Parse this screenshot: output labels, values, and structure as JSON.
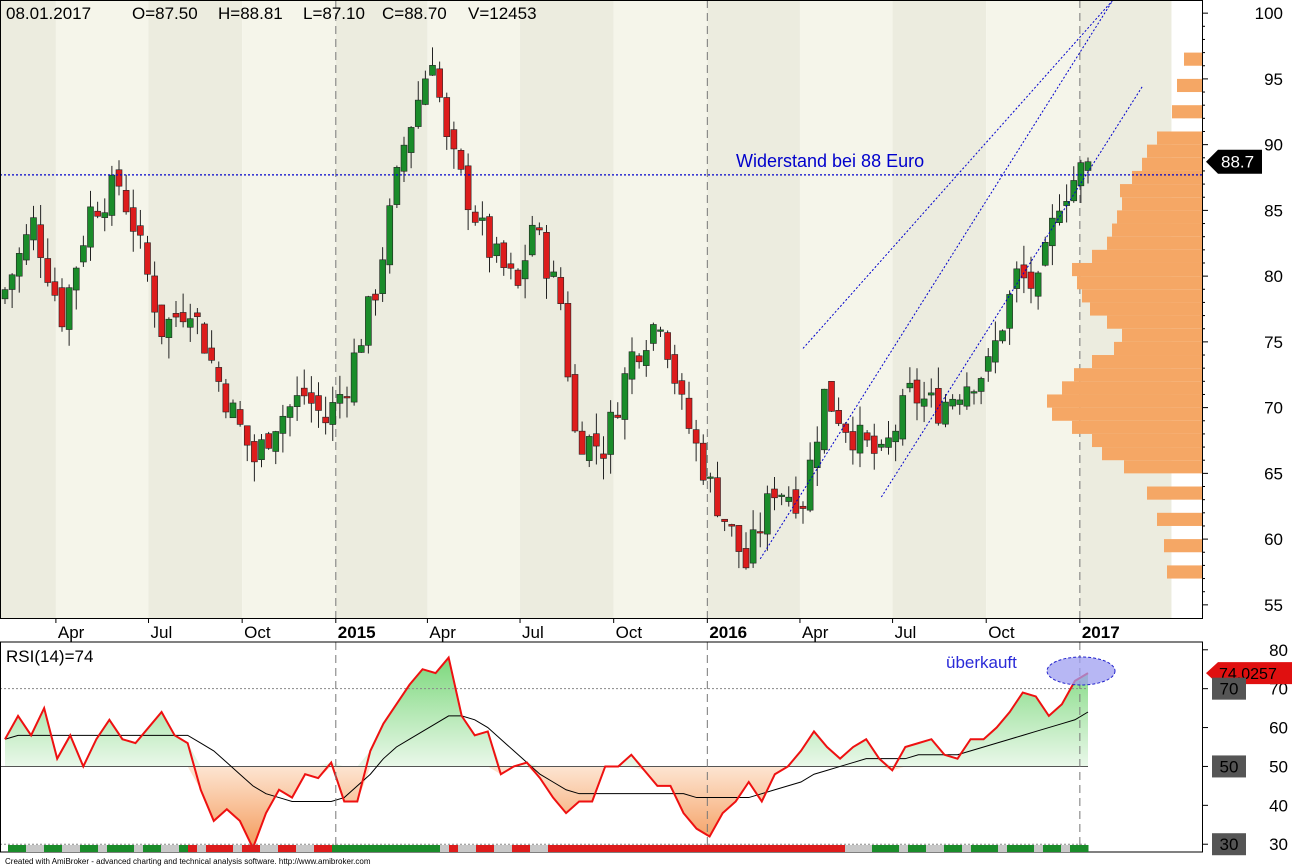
{
  "header": {
    "date": "08.01.2017",
    "open": "O=87.50",
    "high": "H=88.81",
    "low": "L=87.10",
    "close": "C=88.70",
    "volume": "V=12453"
  },
  "price_annotation": "Widerstand bei 88 Euro",
  "price_badge": "88.7",
  "rsi_label": "RSI(14)=74",
  "rsi_annotation": "überkauft",
  "rsi_badge": "74.0257",
  "rsi_levels": [
    "70",
    "50",
    "30"
  ],
  "footer": "Created with AmiBroker - advanced charting and technical analysis software. http://www.amibroker.com",
  "colors": {
    "up": "#1a8c2a",
    "down": "#dd1c1c",
    "trendline": "#0000cc",
    "rsi_line": "#ee1111",
    "volume_profile": "#f5a765",
    "band_a": "#f5f5ea",
    "band_b": "#ececdf"
  },
  "x_labels": [
    {
      "text": "Apr",
      "bold": false
    },
    {
      "text": "Jul",
      "bold": false
    },
    {
      "text": "Oct",
      "bold": false
    },
    {
      "text": "2015",
      "bold": true
    },
    {
      "text": "Apr",
      "bold": false
    },
    {
      "text": "Jul",
      "bold": false
    },
    {
      "text": "Oct",
      "bold": false
    },
    {
      "text": "2016",
      "bold": true
    },
    {
      "text": "Apr",
      "bold": false
    },
    {
      "text": "Jul",
      "bold": false
    },
    {
      "text": "Oct",
      "bold": false
    },
    {
      "text": "2017",
      "bold": true
    }
  ],
  "chart_data": [
    {
      "type": "candlestick",
      "title": "",
      "ylim": [
        54,
        101
      ],
      "y_ticks": [
        55,
        60,
        65,
        70,
        75,
        80,
        85,
        90,
        95,
        100
      ],
      "resistance_level": 87.7,
      "last_close": 88.7,
      "anchors": [
        {
          "date": "2014-02-10",
          "close": 79
        },
        {
          "date": "2014-03-10",
          "close": 84
        },
        {
          "date": "2014-04-07",
          "close": 77
        },
        {
          "date": "2014-05-05",
          "close": 85
        },
        {
          "date": "2014-06-02",
          "close": 87
        },
        {
          "date": "2014-06-16",
          "close": 84
        },
        {
          "date": "2014-07-14",
          "close": 76
        },
        {
          "date": "2014-08-11",
          "close": 78
        },
        {
          "date": "2014-09-08",
          "close": 72
        },
        {
          "date": "2014-10-13",
          "close": 66
        },
        {
          "date": "2014-11-03",
          "close": 69
        },
        {
          "date": "2014-12-01",
          "close": 71
        },
        {
          "date": "2014-12-22",
          "close": 69
        },
        {
          "date": "2015-01-12",
          "close": 72
        },
        {
          "date": "2015-02-09",
          "close": 79
        },
        {
          "date": "2015-03-09",
          "close": 90
        },
        {
          "date": "2015-04-06",
          "close": 97
        },
        {
          "date": "2015-04-20",
          "close": 90
        },
        {
          "date": "2015-05-11",
          "close": 86
        },
        {
          "date": "2015-06-01",
          "close": 82
        },
        {
          "date": "2015-06-29",
          "close": 79
        },
        {
          "date": "2015-07-13",
          "close": 84
        },
        {
          "date": "2015-08-10",
          "close": 78
        },
        {
          "date": "2015-08-24",
          "close": 68
        },
        {
          "date": "2015-09-21",
          "close": 67
        },
        {
          "date": "2015-10-19",
          "close": 74
        },
        {
          "date": "2015-11-16",
          "close": 77
        },
        {
          "date": "2015-12-07",
          "close": 70
        },
        {
          "date": "2016-01-04",
          "close": 64
        },
        {
          "date": "2016-02-08",
          "close": 58
        },
        {
          "date": "2016-03-07",
          "close": 64
        },
        {
          "date": "2016-04-04",
          "close": 63
        },
        {
          "date": "2016-04-25",
          "close": 71
        },
        {
          "date": "2016-05-23",
          "close": 68
        },
        {
          "date": "2016-06-20",
          "close": 66
        },
        {
          "date": "2016-07-18",
          "close": 71
        },
        {
          "date": "2016-08-15",
          "close": 70
        },
        {
          "date": "2016-09-12",
          "close": 72
        },
        {
          "date": "2016-10-03",
          "close": 73
        },
        {
          "date": "2016-10-31",
          "close": 80
        },
        {
          "date": "2016-11-21",
          "close": 79
        },
        {
          "date": "2016-12-12",
          "close": 86
        },
        {
          "date": "2017-01-09",
          "close": 88.7
        }
      ],
      "channel_lines": [
        {
          "from": {
            "date": "2016-04-04",
            "price": 74.5
          },
          "to": {
            "date": "2017-01-09",
            "price": 101
          }
        },
        {
          "from": {
            "date": "2016-02-22",
            "price": 58.5
          },
          "to": {
            "date": "2017-01-09",
            "price": 101
          }
        },
        {
          "from": {
            "date": "2016-06-20",
            "price": 63.2
          },
          "to": {
            "date": "2017-01-09",
            "price": 94.5
          }
        }
      ],
      "volume_profile": [
        {
          "price": 57,
          "width": 35
        },
        {
          "price": 59,
          "width": 38
        },
        {
          "price": 61,
          "width": 45
        },
        {
          "price": 63,
          "width": 55
        },
        {
          "price": 65,
          "width": 78
        },
        {
          "price": 66,
          "width": 100
        },
        {
          "price": 67,
          "width": 110
        },
        {
          "price": 68,
          "width": 130
        },
        {
          "price": 69,
          "width": 150
        },
        {
          "price": 70,
          "width": 155
        },
        {
          "price": 71,
          "width": 140
        },
        {
          "price": 72,
          "width": 128
        },
        {
          "price": 73,
          "width": 110
        },
        {
          "price": 74,
          "width": 88
        },
        {
          "price": 75,
          "width": 80
        },
        {
          "price": 76,
          "width": 95
        },
        {
          "price": 77,
          "width": 112
        },
        {
          "price": 78,
          "width": 120
        },
        {
          "price": 79,
          "width": 125
        },
        {
          "price": 80,
          "width": 130
        },
        {
          "price": 81,
          "width": 110
        },
        {
          "price": 82,
          "width": 95
        },
        {
          "price": 83,
          "width": 90
        },
        {
          "price": 84,
          "width": 85
        },
        {
          "price": 85,
          "width": 80
        },
        {
          "price": 86,
          "width": 82
        },
        {
          "price": 87,
          "width": 70
        },
        {
          "price": 88,
          "width": 60
        },
        {
          "price": 89,
          "width": 55
        },
        {
          "price": 90,
          "width": 45
        },
        {
          "price": 92,
          "width": 30
        },
        {
          "price": 94,
          "width": 25
        },
        {
          "price": 96,
          "width": 18
        }
      ]
    },
    {
      "type": "line",
      "title": "RSI(14)=74",
      "ylim": [
        28,
        82
      ],
      "y_ticks": [
        30,
        40,
        50,
        60,
        70,
        80
      ],
      "levels": [
        30,
        50,
        70
      ],
      "series": [
        {
          "name": "RSI(14)",
          "values": [
            57,
            63,
            58,
            65,
            52,
            58,
            50,
            57,
            62,
            57,
            56,
            60,
            64,
            58,
            56,
            44,
            36,
            39,
            36,
            29,
            38,
            44,
            42,
            48,
            47,
            51,
            41,
            41,
            54,
            61,
            66,
            71,
            75,
            74,
            78,
            63,
            58,
            59,
            48,
            50,
            51,
            47,
            42,
            38,
            41,
            41,
            50,
            50,
            53,
            49,
            45,
            45,
            38,
            34,
            32,
            38,
            41,
            46,
            41,
            48,
            50,
            54,
            59,
            55,
            52,
            55,
            57,
            52,
            49,
            55,
            56,
            57,
            53,
            52,
            57,
            57,
            60,
            64,
            69,
            68,
            63,
            66,
            72,
            74
          ]
        },
        {
          "name": "RSI signal",
          "values": [
            57,
            58,
            58,
            58,
            58,
            58,
            58,
            58,
            58,
            58,
            58,
            58,
            58,
            58,
            58,
            56,
            54,
            51,
            48,
            45,
            43,
            42,
            41,
            41,
            41,
            41,
            42,
            45,
            48,
            52,
            55,
            57,
            59,
            61,
            63,
            63,
            62,
            60,
            57,
            54,
            51,
            48,
            46,
            44,
            43,
            43,
            43,
            43,
            43,
            43,
            43,
            43,
            43,
            42,
            42,
            42,
            42,
            42,
            43,
            44,
            45,
            46,
            48,
            49,
            50,
            51,
            52,
            52,
            52,
            52,
            53,
            53,
            53,
            53,
            54,
            55,
            56,
            57,
            58,
            59,
            60,
            61,
            62,
            64
          ]
        }
      ]
    }
  ]
}
